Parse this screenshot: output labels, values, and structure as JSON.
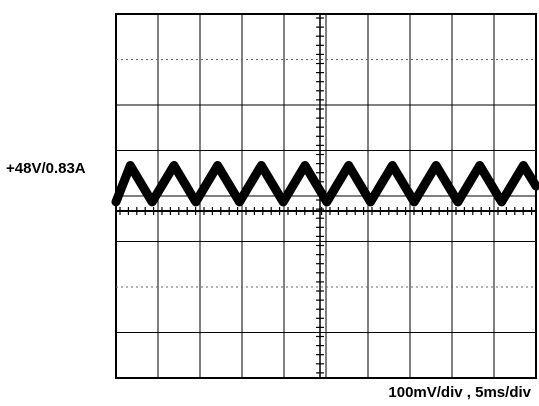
{
  "channel_label": "+48V/0.83A",
  "volts_per_div": "100mV/div",
  "separator": ",",
  "time_per_div": "5ms/div",
  "colors": {
    "background": "#ffffff",
    "grid": "#000000",
    "trace": "#000000"
  },
  "chart_data": {
    "type": "line",
    "title": "",
    "xlabel": "",
    "ylabel": "",
    "divisions": {
      "horizontal": 10,
      "vertical": 8
    },
    "grid": true,
    "xlim": [
      0,
      50
    ],
    "ylim": [
      -400,
      400
    ],
    "x_unit": "ms",
    "y_unit": "mV",
    "baseline_mV": 0,
    "series": [
      {
        "x": [
          0,
          1.7,
          4.3,
          6.9,
          9.5,
          12.1,
          14.7,
          17.3,
          19.9,
          22.5,
          25.1,
          27.7,
          30.3,
          32.9,
          35.5,
          38.1,
          40.7,
          43.3,
          45.9,
          48.5,
          50
        ],
        "y": [
          20,
          100,
          20,
          100,
          20,
          100,
          20,
          100,
          20,
          100,
          20,
          100,
          20,
          100,
          20,
          100,
          20,
          100,
          20,
          100,
          55
        ]
      }
    ]
  }
}
